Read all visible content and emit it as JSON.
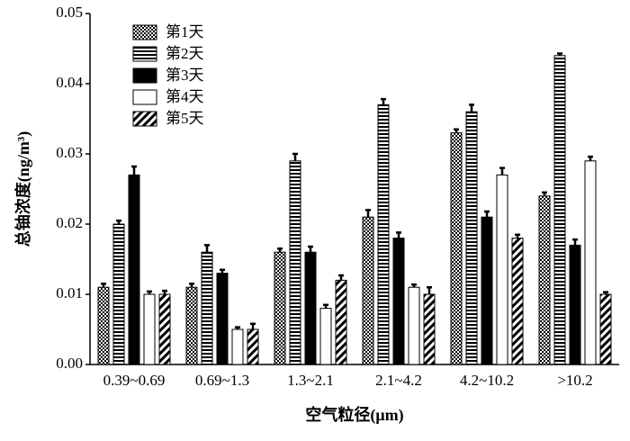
{
  "chart_data": {
    "type": "bar",
    "y_label": "总铀浓度(ng/m³)",
    "x_label": "空气粒径(μm)",
    "categories": [
      "0.39~0.69",
      "0.69~1.3",
      "1.3~2.1",
      "2.1~4.2",
      "4.2~10.2",
      ">10.2"
    ],
    "series": [
      {
        "name": "第1天",
        "color": "#000000",
        "pattern": "checker",
        "values": [
          0.011,
          0.011,
          0.016,
          0.021,
          0.033,
          0.024
        ],
        "errors": [
          0.0005,
          0.0005,
          0.0005,
          0.001,
          0.0005,
          0.0005
        ]
      },
      {
        "name": "第2天",
        "color": "#000000",
        "pattern": "hstripe",
        "values": [
          0.02,
          0.016,
          0.029,
          0.037,
          0.036,
          0.044
        ],
        "errors": [
          0.0005,
          0.001,
          0.001,
          0.0008,
          0.001,
          0.0003
        ]
      },
      {
        "name": "第3天",
        "color": "#000000",
        "pattern": "solid",
        "values": [
          0.027,
          0.013,
          0.016,
          0.018,
          0.021,
          0.017
        ],
        "errors": [
          0.0012,
          0.0005,
          0.0008,
          0.0008,
          0.0008,
          0.0008
        ]
      },
      {
        "name": "第4天",
        "color": "#000000",
        "pattern": "none",
        "values": [
          0.01,
          0.005,
          0.008,
          0.011,
          0.027,
          0.029
        ],
        "errors": [
          0.0004,
          0.0003,
          0.0005,
          0.0004,
          0.001,
          0.0006
        ]
      },
      {
        "name": "第5天",
        "color": "#000000",
        "pattern": "diag",
        "values": [
          0.01,
          0.005,
          0.012,
          0.01,
          0.018,
          0.01
        ],
        "errors": [
          0.0005,
          0.0008,
          0.0007,
          0.001,
          0.0005,
          0.0003
        ]
      }
    ],
    "ylim": [
      0,
      0.05
    ],
    "yticks": [
      {
        "value": 0,
        "label": "0.00"
      },
      0.01,
      0.02,
      0.03,
      0.04,
      0.05
    ],
    "legend": "upper left"
  }
}
